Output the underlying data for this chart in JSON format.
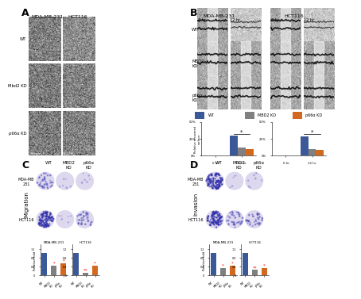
{
  "panel_labels": [
    "A",
    "B",
    "C",
    "D"
  ],
  "panel_A": {
    "col_labels": [
      "MDA-MB-231",
      "HCT116"
    ],
    "row_labels": [
      "WT",
      "Mbd2 KD",
      "p66α KD"
    ],
    "scale_bar": "50 μm"
  },
  "panel_B": {
    "col_group1": "MDA-MB-231",
    "col_group2": "HCT116",
    "timepoints": [
      "0 hr",
      "12 hr",
      "0 hr",
      "12 hr"
    ],
    "row_labels": [
      "WT",
      "MBD2\nKD",
      "p66α\nKD"
    ],
    "legend": [
      "WT",
      "MBD2 KD",
      "p66α KD"
    ],
    "legend_colors": [
      "#3b5998",
      "#808080",
      "#d2691e"
    ],
    "ylabel": "Relative recovered\nsurface",
    "yticks": [
      "0%",
      "25%",
      "50%"
    ],
    "bar_data_left": {
      "0hr": [
        0,
        0,
        0
      ],
      "12hr": [
        30,
        12,
        10
      ]
    },
    "bar_data_right": {
      "0hr": [
        0,
        0,
        0
      ],
      "12hr": [
        28,
        10,
        8
      ]
    }
  },
  "panel_C": {
    "title": "Migration",
    "col_labels": [
      "WT",
      "MBD2\nKD",
      "p66α\nKD"
    ],
    "row_labels": [
      "MDA-MB\n231",
      "HCT116"
    ],
    "bar_colors": [
      "#3b5998",
      "#808080",
      "#d2691e"
    ],
    "bar_data_MDA": [
      1.0,
      0.45,
      0.55
    ],
    "bar_data_HCT": [
      1.0,
      0.12,
      0.45
    ],
    "bar_ylabel": "Relative fold",
    "bar_xlabel_MDA": "MDA-MB-231",
    "bar_xlabel_HCT": "HCT116"
  },
  "panel_D": {
    "title": "Invasion",
    "col_labels": [
      "WT",
      "MBD2\nKD",
      "p66α\nKD"
    ],
    "row_labels": [
      "MDA-MB\n231",
      "HCT116"
    ],
    "bar_colors": [
      "#3b5998",
      "#808080",
      "#d2691e"
    ],
    "bar_data_MDA": [
      1.0,
      0.35,
      0.45
    ],
    "bar_data_HCT": [
      1.0,
      0.25,
      0.35
    ],
    "bar_ylabel": "Relative fold",
    "bar_xlabel_MDA": "MDA-MB-231",
    "bar_xlabel_HCT": "HCT116"
  },
  "colors": {
    "wt": "#3b5998",
    "mbd2": "#808080",
    "p66a": "#d2691e",
    "bg": "#ffffff"
  }
}
